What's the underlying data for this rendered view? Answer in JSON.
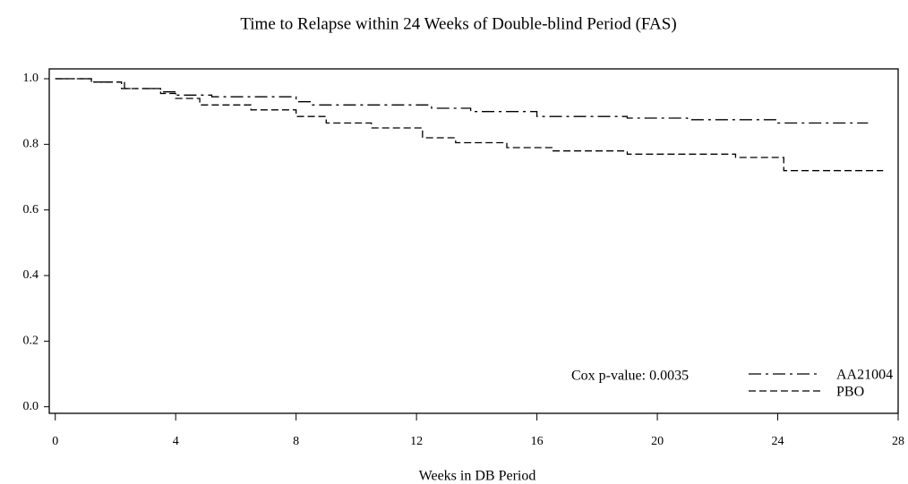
{
  "chart_data": {
    "type": "step",
    "title": "Time to Relapse within 24 Weeks of Double-blind Period (FAS)",
    "xlabel": "Weeks in DB Period",
    "annotation": "Cox p-value:  0.0035",
    "xlim": [
      -0.2,
      28
    ],
    "xticks": [
      0,
      4,
      8,
      12,
      16,
      20,
      24,
      28
    ],
    "ylim": [
      -0.02,
      1.03
    ],
    "yticks": [
      {
        "value": 0,
        "label": "0.0"
      },
      0.2,
      0.4,
      0.6,
      0.8,
      {
        "value": 1,
        "label": "1.0"
      }
    ],
    "legend": "lower right",
    "series": [
      {
        "name": "AA21004",
        "color": "#000000",
        "style": "dashdot",
        "x": [
          0,
          1.2,
          2.3,
          3.5,
          4.0,
          5.2,
          8.0,
          8.5,
          12.5,
          13.8,
          16.0,
          19.0,
          21.0,
          24.0,
          27.0
        ],
        "values": [
          1.0,
          0.99,
          0.97,
          0.96,
          0.95,
          0.945,
          0.93,
          0.92,
          0.91,
          0.9,
          0.885,
          0.88,
          0.875,
          0.865,
          0.865
        ]
      },
      {
        "name": "PBO",
        "color": "#000000",
        "style": "dashed",
        "x": [
          0,
          1.2,
          2.2,
          3.5,
          4.0,
          4.8,
          6.5,
          8.0,
          9.0,
          10.5,
          12.2,
          13.3,
          15.0,
          16.5,
          19.0,
          22.6,
          24.2,
          27.5
        ],
        "values": [
          1.0,
          0.99,
          0.97,
          0.955,
          0.94,
          0.92,
          0.905,
          0.885,
          0.865,
          0.85,
          0.82,
          0.805,
          0.79,
          0.78,
          0.77,
          0.76,
          0.72,
          0.72
        ]
      }
    ]
  }
}
